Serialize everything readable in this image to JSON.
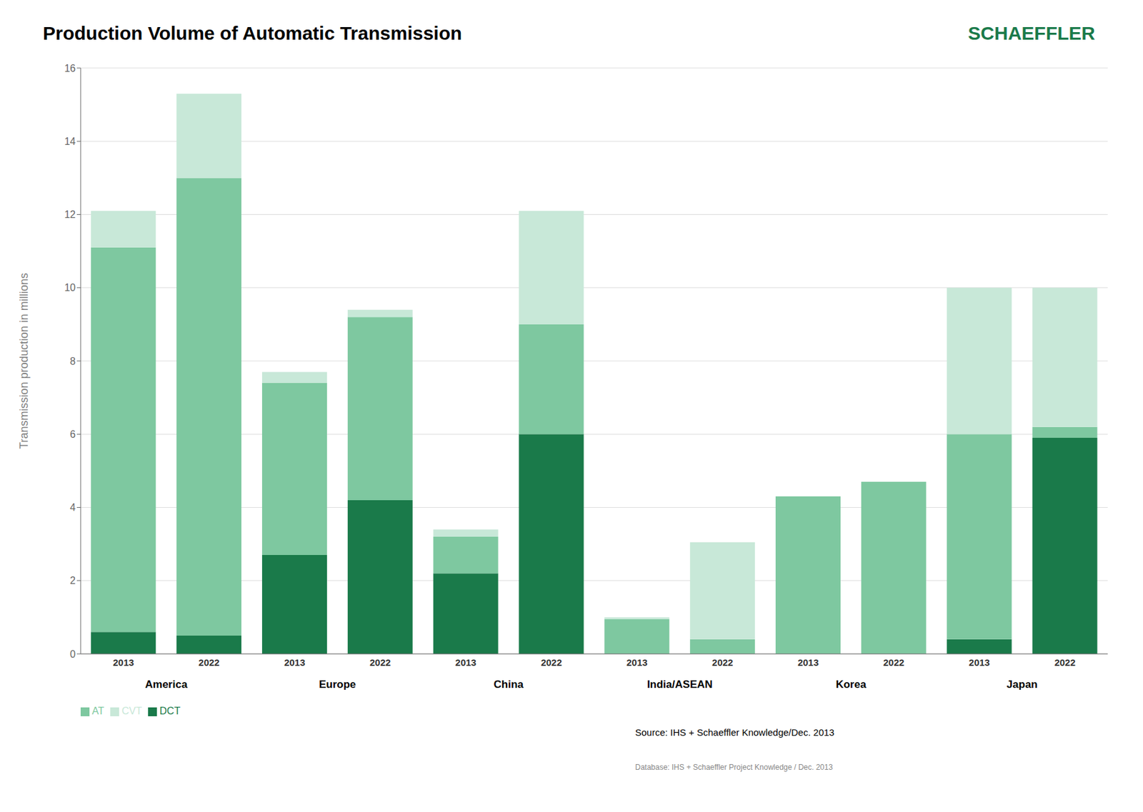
{
  "chart_data": {
    "type": "bar",
    "title": "Production Volume of Automatic Transmission",
    "ylabel": "Transmission production in millions",
    "categories": [
      "2013",
      "2022",
      "2013",
      "2022",
      "2013",
      "2022",
      "2013",
      "2022",
      "2013",
      "2022",
      "2013",
      "2022"
    ],
    "groups": [
      "America",
      "Europe",
      "China",
      "India/ASEAN",
      "Korea",
      "Japan"
    ],
    "series": [
      {
        "name": "DCT",
        "color": "#1a7a4a",
        "values": [
          0.6,
          0.5,
          2.7,
          4.2,
          2.2,
          6.0,
          0.0,
          0.0,
          0.0,
          0.0,
          0.4,
          5.9
        ]
      },
      {
        "name": "AT",
        "color": "#7ec8a0",
        "values": [
          10.5,
          12.5,
          4.7,
          5.0,
          1.0,
          3.0,
          0.95,
          0.4,
          4.3,
          4.7,
          5.6,
          0.3
        ]
      },
      {
        "name": "CVT",
        "color": "#c8e8d8",
        "values": [
          1.0,
          2.3,
          0.3,
          0.2,
          0.2,
          3.1,
          0.05,
          2.65,
          0.0,
          0.0,
          4.0,
          3.8
        ]
      }
    ],
    "stacked": true,
    "ylim": [
      0,
      16
    ],
    "yticks": [
      0,
      2,
      4,
      6,
      8,
      10,
      12,
      14,
      16
    ],
    "grid": true,
    "legend": "lower left",
    "annotations": [
      {
        "text": "SCHAEFFLER",
        "color": "#1a7a4a"
      },
      {
        "text": "Source: IHS + Schaeffler Knowledge/Dec. 2013"
      },
      {
        "text": "Database: IHS + Schaeffler Project Knowledge / Dec. 2013",
        "color": "#888888"
      }
    ]
  }
}
